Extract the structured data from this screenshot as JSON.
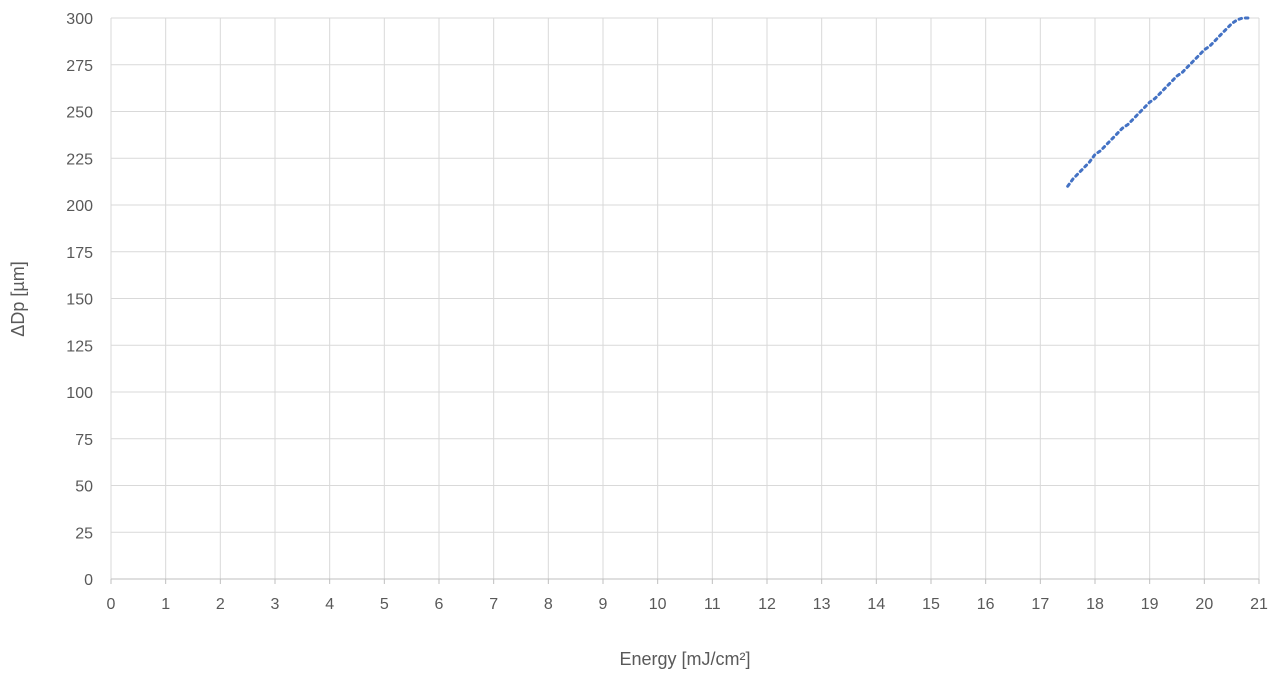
{
  "chart_data": {
    "type": "scatter",
    "title": "",
    "xlabel": "Energy [mJ/cm²]",
    "ylabel": "ΔDp  [µm]",
    "xlim": [
      0,
      21
    ],
    "ylim": [
      0,
      300
    ],
    "x_ticks": [
      0,
      1,
      2,
      3,
      4,
      5,
      6,
      7,
      8,
      9,
      10,
      11,
      12,
      13,
      14,
      15,
      16,
      17,
      18,
      19,
      20,
      21
    ],
    "y_ticks": [
      0,
      25,
      50,
      75,
      100,
      125,
      150,
      175,
      200,
      225,
      250,
      275,
      300
    ],
    "grid": true,
    "legend": "none",
    "series": [
      {
        "color": "#4472C4",
        "style": "dotted",
        "points": [
          [
            17.5,
            210
          ],
          [
            17.6,
            214
          ],
          [
            17.7,
            217
          ],
          [
            17.8,
            220
          ],
          [
            17.9,
            223
          ],
          [
            18.0,
            227
          ],
          [
            18.1,
            229
          ],
          [
            18.2,
            232
          ],
          [
            18.3,
            235
          ],
          [
            18.4,
            238
          ],
          [
            18.5,
            241
          ],
          [
            18.6,
            243
          ],
          [
            18.7,
            246
          ],
          [
            18.8,
            249
          ],
          [
            18.9,
            252
          ],
          [
            19.0,
            255
          ],
          [
            19.1,
            257
          ],
          [
            19.2,
            260
          ],
          [
            19.3,
            263
          ],
          [
            19.4,
            266
          ],
          [
            19.5,
            269
          ],
          [
            19.6,
            271
          ],
          [
            19.7,
            274
          ],
          [
            19.8,
            277
          ],
          [
            19.9,
            280
          ],
          [
            20.0,
            283
          ],
          [
            20.1,
            285
          ],
          [
            20.2,
            288
          ],
          [
            20.3,
            291
          ],
          [
            20.4,
            294
          ],
          [
            20.5,
            297
          ],
          [
            20.6,
            299
          ],
          [
            20.7,
            300
          ],
          [
            20.8,
            300
          ]
        ]
      }
    ]
  }
}
